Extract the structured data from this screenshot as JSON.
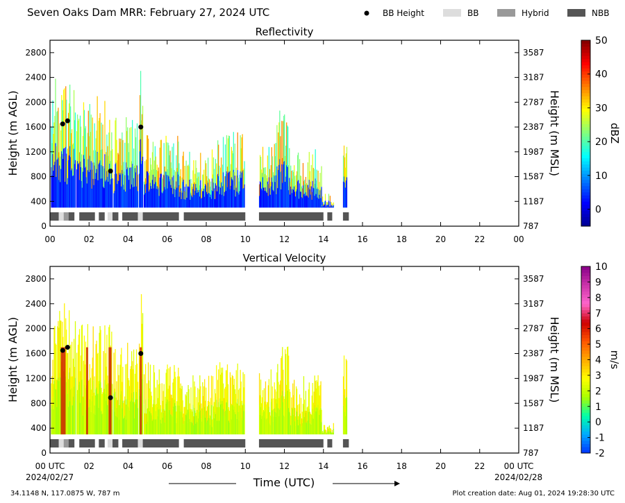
{
  "header": {
    "title": "Seven Oaks Dam MRR:  February 27, 2024 UTC",
    "legend": [
      {
        "label": "BB Height",
        "kind": "dot",
        "color": "#000000"
      },
      {
        "label": "BB",
        "kind": "rect",
        "color": "#dddddd"
      },
      {
        "label": "Hybrid",
        "kind": "rect",
        "color": "#999999"
      },
      {
        "label": "NBB",
        "kind": "rect",
        "color": "#555555"
      }
    ]
  },
  "footer": {
    "xlabel": "Time (UTC)",
    "start_date": "2024/02/27",
    "end_date": "2024/02/28",
    "location": "34.1148 N, 117.0875 W, 787 m",
    "creation": "Plot creation date: Aug 01, 2024 19:28:30 UTC"
  },
  "chart_data": [
    {
      "type": "heatmap",
      "title": "Reflectivity",
      "ylabel": "Height (m AGL)",
      "ylabel_right": "Height (m MSL)",
      "xlim": [
        0,
        24
      ],
      "ylim": [
        0,
        3000
      ],
      "x_ticks": [
        "00",
        "02",
        "04",
        "06",
        "08",
        "10",
        "12",
        "14",
        "16",
        "18",
        "20",
        "22",
        "00"
      ],
      "y_ticks": [
        0,
        400,
        800,
        1200,
        1600,
        2000,
        2400,
        2800
      ],
      "y_ticks_right": [
        "787",
        "1187",
        "1587",
        "1987",
        "2387",
        "2787",
        "3187",
        "3587"
      ],
      "colorbar": {
        "label": "dBZ",
        "min": -5,
        "max": 50,
        "ticks": [
          "0",
          "10",
          "20",
          "30",
          "40",
          "50"
        ],
        "tick_values": [
          0,
          10,
          20,
          30,
          40,
          50
        ],
        "colors": [
          "#00008f",
          "#0000ff",
          "#0080ff",
          "#00ffff",
          "#80ff80",
          "#ffff00",
          "#ff8000",
          "#ff0000",
          "#800000"
        ]
      },
      "bb_points": [
        [
          0.65,
          1650
        ],
        [
          0.9,
          1700
        ],
        [
          3.1,
          890
        ],
        [
          4.65,
          1600
        ]
      ],
      "precip_segments": [
        [
          0.05,
          1.3,
          2300
        ],
        [
          1.35,
          3.2,
          2000
        ],
        [
          3.25,
          4.5,
          1700
        ],
        [
          4.55,
          4.75,
          2450
        ],
        [
          4.8,
          6.6,
          1400
        ],
        [
          6.6,
          8.5,
          1200
        ],
        [
          8.5,
          9.95,
          1450
        ],
        [
          10.7,
          11.6,
          1300
        ],
        [
          11.6,
          12.2,
          1800
        ],
        [
          12.2,
          13.9,
          1200
        ],
        [
          13.9,
          14.5,
          500
        ],
        [
          15.0,
          15.2,
          1500
        ]
      ],
      "bb_type_blocks": [
        [
          0.0,
          0.45,
          "NBB"
        ],
        [
          0.45,
          0.7,
          "BB"
        ],
        [
          0.7,
          0.95,
          "Hybrid"
        ],
        [
          0.95,
          1.25,
          "NBB"
        ],
        [
          1.5,
          2.3,
          "NBB"
        ],
        [
          2.5,
          2.8,
          "NBB"
        ],
        [
          2.95,
          3.2,
          "BB"
        ],
        [
          3.2,
          3.5,
          "NBB"
        ],
        [
          3.7,
          4.5,
          "NBB"
        ],
        [
          4.5,
          4.75,
          "BB"
        ],
        [
          4.75,
          6.6,
          "NBB"
        ],
        [
          6.85,
          10.0,
          "NBB"
        ],
        [
          10.7,
          14.0,
          "NBB"
        ],
        [
          14.2,
          14.45,
          "NBB"
        ],
        [
          15.0,
          15.3,
          "NBB"
        ]
      ]
    },
    {
      "type": "heatmap",
      "title": "Vertical Velocity",
      "ylabel": "Height (m AGL)",
      "ylabel_right": "Height (m MSL)",
      "xlim": [
        0,
        24
      ],
      "ylim": [
        0,
        3000
      ],
      "x_ticks": [
        "00 UTC",
        "02",
        "04",
        "06",
        "08",
        "10",
        "12",
        "14",
        "16",
        "18",
        "20",
        "22",
        "00 UTC"
      ],
      "y_ticks": [
        0,
        400,
        800,
        1200,
        1600,
        2000,
        2400,
        2800
      ],
      "y_ticks_right": [
        "787",
        "1187",
        "1587",
        "1987",
        "2387",
        "2787",
        "3187",
        "3587"
      ],
      "colorbar": {
        "label": "m/s",
        "min": -2,
        "max": 10,
        "ticks": [
          "-2",
          "-1",
          "0",
          "1",
          "2",
          "3",
          "4",
          "5",
          "6",
          "7",
          "8",
          "9",
          "10"
        ],
        "tick_values": [
          -2,
          -1,
          0,
          1,
          2,
          3,
          4,
          5,
          6,
          7,
          8,
          9,
          10
        ],
        "colors": [
          "#0033ff",
          "#00aaff",
          "#00ffaa",
          "#aaff00",
          "#ffff00",
          "#ffaa00",
          "#ff5500",
          "#cc0000",
          "#ff66cc",
          "#cc33aa",
          "#880088"
        ]
      },
      "bb_points": [
        [
          0.65,
          1650
        ],
        [
          0.9,
          1700
        ],
        [
          3.1,
          890
        ],
        [
          4.65,
          1600
        ]
      ],
      "precip_segments": [
        [
          0.05,
          1.3,
          2300
        ],
        [
          1.35,
          3.2,
          2000
        ],
        [
          3.25,
          4.5,
          1700
        ],
        [
          4.55,
          4.75,
          2450
        ],
        [
          4.8,
          6.6,
          1400
        ],
        [
          6.6,
          8.5,
          1200
        ],
        [
          8.5,
          9.95,
          1450
        ],
        [
          10.7,
          11.6,
          1300
        ],
        [
          11.6,
          12.2,
          1800
        ],
        [
          12.2,
          13.9,
          1200
        ],
        [
          13.9,
          14.5,
          500
        ],
        [
          15.0,
          15.2,
          1500
        ]
      ],
      "bb_type_blocks": [
        [
          0.0,
          0.45,
          "NBB"
        ],
        [
          0.45,
          0.7,
          "BB"
        ],
        [
          0.7,
          0.95,
          "Hybrid"
        ],
        [
          0.95,
          1.25,
          "NBB"
        ],
        [
          1.5,
          2.3,
          "NBB"
        ],
        [
          2.5,
          2.8,
          "NBB"
        ],
        [
          2.95,
          3.2,
          "BB"
        ],
        [
          3.2,
          3.5,
          "NBB"
        ],
        [
          3.7,
          4.5,
          "NBB"
        ],
        [
          4.5,
          4.75,
          "BB"
        ],
        [
          4.75,
          6.6,
          "NBB"
        ],
        [
          6.85,
          10.0,
          "NBB"
        ],
        [
          10.7,
          14.0,
          "NBB"
        ],
        [
          14.2,
          14.45,
          "NBB"
        ],
        [
          15.0,
          15.3,
          "NBB"
        ]
      ]
    }
  ]
}
